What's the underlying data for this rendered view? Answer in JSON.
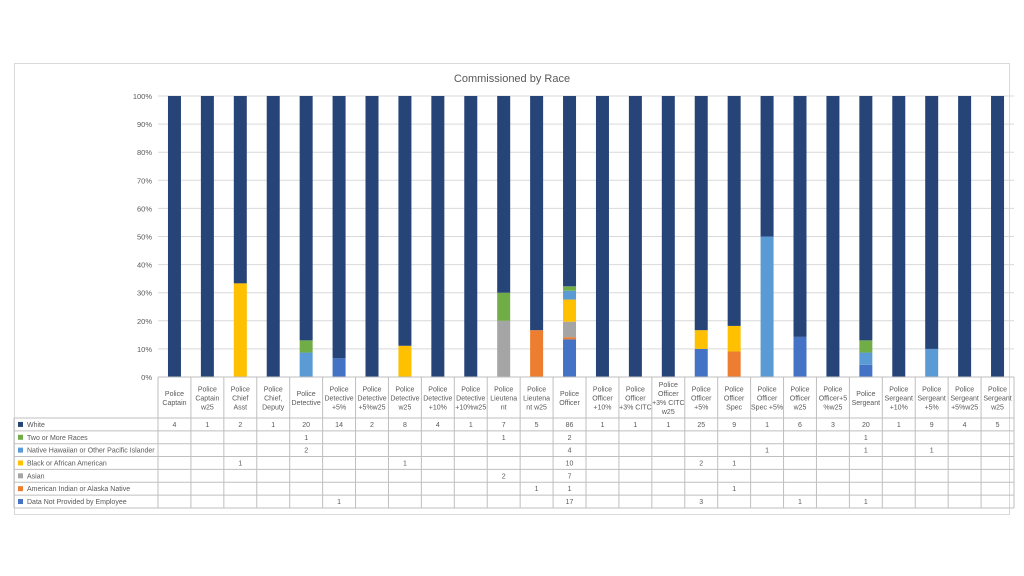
{
  "chart_data": {
    "type": "bar",
    "stacked": "percent",
    "title": "Commissioned by Race",
    "ylim": [
      0,
      100
    ],
    "y_tick_labels": [
      "0%",
      "10%",
      "20%",
      "30%",
      "40%",
      "50%",
      "60%",
      "70%",
      "80%",
      "90%",
      "100%"
    ],
    "grid": true,
    "legend": "bottom-left data table",
    "categories": [
      [
        "Police",
        "Captain"
      ],
      [
        "Police",
        "Captain",
        "w25"
      ],
      [
        "Police",
        "Chief",
        "Asst"
      ],
      [
        "Police",
        "Chief,",
        "Deputy"
      ],
      [
        "Police",
        "Detective"
      ],
      [
        "Police",
        "Detective",
        "+5%"
      ],
      [
        "Police",
        "Detective",
        "+5%w25"
      ],
      [
        "Police",
        "Detective",
        "w25"
      ],
      [
        "Police",
        "Detective",
        "+10%"
      ],
      [
        "Police",
        "Detective",
        "+10%w25"
      ],
      [
        "Police",
        "Lieutena",
        "nt"
      ],
      [
        "Police",
        "Lieutena",
        "nt w25"
      ],
      [
        "Police",
        "Officer"
      ],
      [
        "Police",
        "Officer",
        "+10%"
      ],
      [
        "Police",
        "Officer",
        "+3% CITC"
      ],
      [
        "Police",
        "Officer",
        "+3% CITC",
        "w25"
      ],
      [
        "Police",
        "Officer",
        "+5%"
      ],
      [
        "Police",
        "Officer",
        "Spec"
      ],
      [
        "Police",
        "Officer",
        "Spec +5%"
      ],
      [
        "Police",
        "Officer",
        "w25"
      ],
      [
        "Police",
        "Officer+5",
        "%w25"
      ],
      [
        "Police",
        "Sergeant"
      ],
      [
        "Police",
        "Sergeant",
        "+10%"
      ],
      [
        "Police",
        "Sergeant",
        "+5%"
      ],
      [
        "Police",
        "Sergeant",
        "+5%w25"
      ],
      [
        "Police",
        "Sergeant",
        "w25"
      ]
    ],
    "series": [
      {
        "name": "White",
        "color": "#264478",
        "values": [
          4,
          1,
          2,
          1,
          20,
          14,
          2,
          8,
          4,
          1,
          7,
          5,
          86,
          1,
          1,
          1,
          25,
          9,
          1,
          6,
          3,
          20,
          1,
          9,
          4,
          5
        ]
      },
      {
        "name": "Two or More Races",
        "color": "#70ad47",
        "values": [
          null,
          null,
          null,
          null,
          1,
          null,
          null,
          null,
          null,
          null,
          1,
          null,
          2,
          null,
          null,
          null,
          null,
          null,
          null,
          null,
          null,
          1,
          null,
          null,
          null,
          null
        ]
      },
      {
        "name": "Native Hawaiian or Other Pacific Islander",
        "color": "#5b9bd5",
        "values": [
          null,
          null,
          null,
          null,
          2,
          null,
          null,
          null,
          null,
          null,
          null,
          null,
          4,
          null,
          null,
          null,
          null,
          null,
          1,
          null,
          null,
          1,
          null,
          1,
          null,
          null
        ]
      },
      {
        "name": "Black or African American",
        "color": "#ffc000",
        "values": [
          null,
          null,
          1,
          null,
          null,
          null,
          null,
          1,
          null,
          null,
          null,
          null,
          10,
          null,
          null,
          null,
          2,
          1,
          null,
          null,
          null,
          null,
          null,
          null,
          null,
          null
        ]
      },
      {
        "name": "Asian",
        "color": "#a5a5a5",
        "values": [
          null,
          null,
          null,
          null,
          null,
          null,
          null,
          null,
          null,
          null,
          2,
          null,
          7,
          null,
          null,
          null,
          null,
          null,
          null,
          null,
          null,
          null,
          null,
          null,
          null,
          null
        ]
      },
      {
        "name": "American Indian or Alaska Native",
        "color": "#ed7d31",
        "values": [
          null,
          null,
          null,
          null,
          null,
          null,
          null,
          null,
          null,
          null,
          null,
          1,
          1,
          null,
          null,
          null,
          null,
          1,
          null,
          null,
          null,
          null,
          null,
          null,
          null,
          null
        ]
      },
      {
        "name": "Data Not Provided by Employee",
        "color": "#4472c4",
        "values": [
          null,
          null,
          null,
          null,
          null,
          1,
          null,
          null,
          null,
          null,
          null,
          null,
          17,
          null,
          null,
          null,
          3,
          null,
          null,
          1,
          null,
          1,
          null,
          null,
          null,
          null
        ]
      }
    ]
  }
}
